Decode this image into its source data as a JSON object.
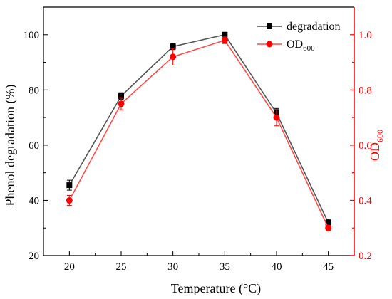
{
  "chart_data": {
    "type": "line",
    "x": [
      20,
      25,
      30,
      35,
      40,
      45
    ],
    "xlim": [
      17.5,
      47.5
    ],
    "xticks": [
      20,
      25,
      30,
      35,
      40,
      45
    ],
    "xlabel": "Temperature (°C)",
    "y_left": {
      "label": "Phenol degradation (%)",
      "lim": [
        20,
        110
      ],
      "ticks": [
        20,
        40,
        60,
        80,
        100
      ],
      "color": "#000000"
    },
    "y_right": {
      "label_main": "OD",
      "label_sub": "600",
      "lim": [
        0.2,
        1.1
      ],
      "ticks": [
        "0.2",
        "0.4",
        "0.6",
        "0.8",
        "1.0"
      ],
      "color": "#ff0000"
    },
    "series": [
      {
        "name": "degradation",
        "axis": "left",
        "color": "#000000",
        "line_color": "#555555",
        "marker": "square",
        "values": [
          45.5,
          77.8,
          95.7,
          100.0,
          71.6,
          31.9
        ],
        "errors": [
          1.8,
          1.2,
          1.1,
          0.8,
          1.7,
          1.2
        ]
      },
      {
        "name_main": "OD",
        "name_sub": "600",
        "axis": "right",
        "color": "#ff0000",
        "line_color": "#ff4a4a",
        "marker": "circle",
        "values": [
          0.4,
          0.75,
          0.92,
          0.98,
          0.7,
          0.3
        ],
        "errors": [
          0.018,
          0.022,
          0.03,
          0.012,
          0.03,
          0.01
        ]
      }
    ],
    "legend": "top-right",
    "grid": false
  }
}
